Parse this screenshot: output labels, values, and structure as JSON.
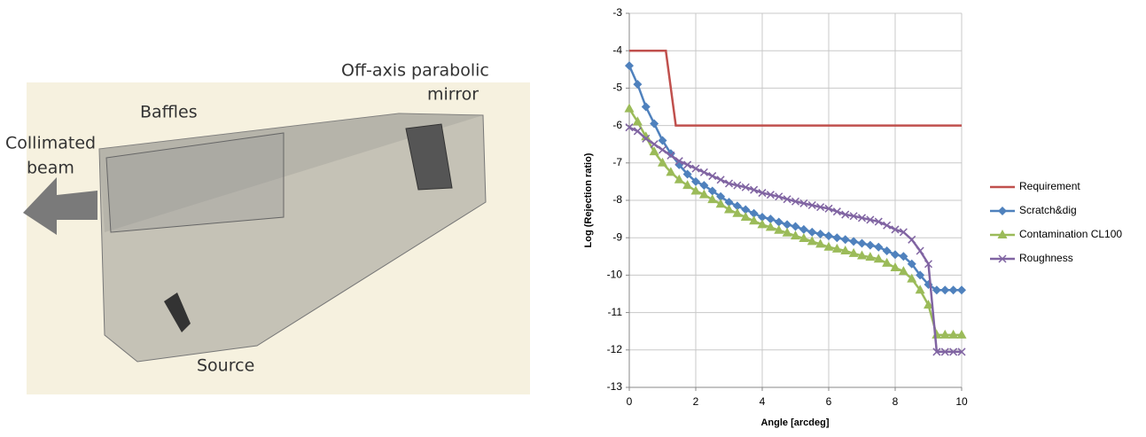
{
  "render": {
    "labels": [
      "Off-axis parabolic",
      "mirror",
      "Baffles",
      "Collimated",
      "beam",
      "Source"
    ]
  },
  "chart_data": {
    "type": "line",
    "xlabel": "Angle [arcdeg]",
    "ylabel": "Log (Rejection ratio)",
    "xlim": [
      0,
      10
    ],
    "xticks": [
      0,
      2,
      4,
      6,
      8,
      10
    ],
    "ylim": [
      -13,
      -3
    ],
    "yticks": [
      -13,
      -12,
      -11,
      -10,
      -9,
      -8,
      -7,
      -6,
      -5,
      -4,
      -3
    ],
    "grid": true,
    "legend": "right",
    "x": [
      0,
      0.25,
      0.5,
      0.75,
      1,
      1.25,
      1.5,
      1.75,
      2,
      2.25,
      2.5,
      2.75,
      3,
      3.25,
      3.5,
      3.75,
      4,
      4.25,
      4.5,
      4.75,
      5,
      5.25,
      5.5,
      5.75,
      6,
      6.25,
      6.5,
      6.75,
      7,
      7.25,
      7.5,
      7.75,
      8,
      8.25,
      8.5,
      8.75,
      9,
      9.25,
      9.5,
      9.75,
      10
    ],
    "series": [
      {
        "name": "Requirement",
        "color": "#c0504d",
        "marker": "none",
        "x": [
          0,
          1.1,
          1.4,
          10
        ],
        "values": [
          -4,
          -4,
          -6,
          -6
        ]
      },
      {
        "name": "Scratch&dig",
        "color": "#4f81bd",
        "marker": "diamond",
        "values": [
          -4.4,
          -4.9,
          -5.5,
          -5.95,
          -6.4,
          -6.75,
          -7.05,
          -7.3,
          -7.5,
          -7.6,
          -7.75,
          -7.9,
          -8.05,
          -8.15,
          -8.25,
          -8.35,
          -8.45,
          -8.5,
          -8.58,
          -8.65,
          -8.7,
          -8.78,
          -8.85,
          -8.9,
          -8.95,
          -9.0,
          -9.05,
          -9.1,
          -9.15,
          -9.2,
          -9.25,
          -9.35,
          -9.45,
          -9.5,
          -9.7,
          -10.0,
          -10.25,
          -10.4,
          -10.4,
          -10.4,
          -10.4
        ]
      },
      {
        "name": "Contamination CL100",
        "color": "#9bbb59",
        "marker": "triangle",
        "values": [
          -5.55,
          -5.9,
          -6.3,
          -6.7,
          -7.0,
          -7.25,
          -7.45,
          -7.6,
          -7.75,
          -7.85,
          -7.98,
          -8.1,
          -8.25,
          -8.35,
          -8.45,
          -8.55,
          -8.65,
          -8.72,
          -8.8,
          -8.87,
          -8.95,
          -9.02,
          -9.1,
          -9.17,
          -9.25,
          -9.3,
          -9.35,
          -9.42,
          -9.48,
          -9.52,
          -9.57,
          -9.68,
          -9.8,
          -9.9,
          -10.1,
          -10.4,
          -10.8,
          -11.6,
          -11.6,
          -11.6,
          -11.6
        ]
      },
      {
        "name": "Roughness",
        "color": "#8064a2",
        "marker": "cross",
        "values": [
          -6.05,
          -6.15,
          -6.35,
          -6.5,
          -6.65,
          -6.8,
          -6.95,
          -7.05,
          -7.15,
          -7.25,
          -7.35,
          -7.45,
          -7.55,
          -7.6,
          -7.65,
          -7.72,
          -7.8,
          -7.85,
          -7.9,
          -7.97,
          -8.03,
          -8.08,
          -8.13,
          -8.18,
          -8.22,
          -8.3,
          -8.38,
          -8.42,
          -8.47,
          -8.52,
          -8.57,
          -8.67,
          -8.78,
          -8.85,
          -9.05,
          -9.35,
          -9.7,
          -12.05,
          -12.05,
          -12.05,
          -12.05
        ]
      }
    ]
  }
}
